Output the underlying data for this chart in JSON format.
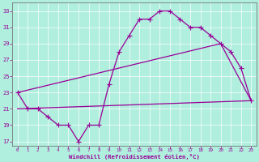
{
  "xlabel": "Windchill (Refroidissement éolien,°C)",
  "xlim": [
    -0.5,
    23.5
  ],
  "ylim": [
    16.5,
    34.0
  ],
  "yticks": [
    17,
    19,
    21,
    23,
    25,
    27,
    29,
    31,
    33
  ],
  "xticks": [
    0,
    1,
    2,
    3,
    4,
    5,
    6,
    7,
    8,
    9,
    10,
    11,
    12,
    13,
    14,
    15,
    16,
    17,
    18,
    19,
    20,
    21,
    22,
    23
  ],
  "bg_color": "#b0eedd",
  "line_color": "#990099",
  "line1_x": [
    0,
    1,
    2,
    3,
    4,
    5,
    6,
    7,
    8,
    9,
    10,
    11,
    12,
    13,
    14,
    15,
    16,
    17,
    18,
    19,
    20,
    21,
    22,
    23
  ],
  "line1_y": [
    23,
    21,
    21,
    20,
    19,
    19,
    17,
    19,
    19,
    24,
    28,
    30,
    32,
    32,
    33,
    33,
    32,
    31,
    31,
    30,
    29,
    28,
    26,
    22
  ],
  "line2_x": [
    0,
    20,
    23
  ],
  "line2_y": [
    23,
    29,
    22
  ],
  "line3_x": [
    0,
    23
  ],
  "line3_y": [
    21,
    22
  ]
}
